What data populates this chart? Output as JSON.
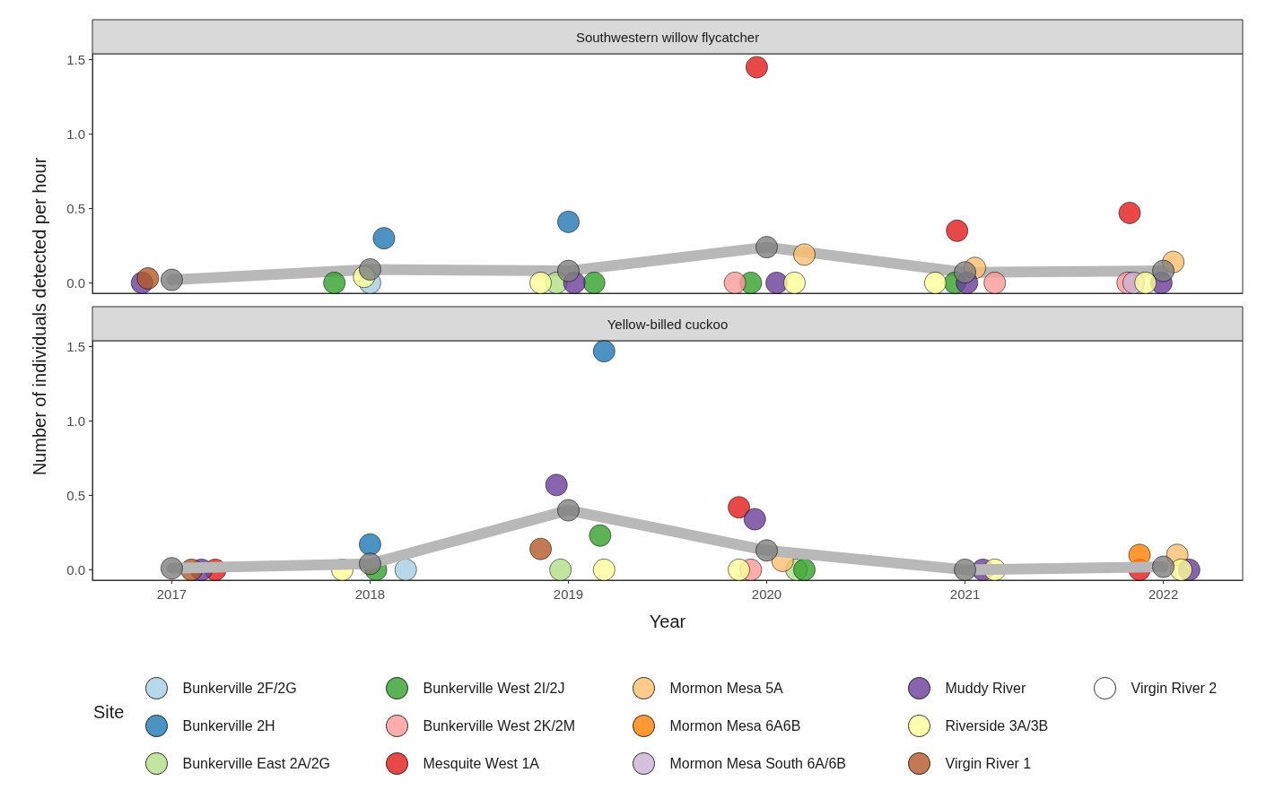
{
  "chart_data": [
    {
      "type": "scatter",
      "title": "Southwestern willow flycatcher",
      "ylabel": "Number of individuals detected per hour",
      "xlim": [
        2016.6,
        2022.4
      ],
      "xticks": [
        2017,
        2018,
        2019,
        2020,
        2021,
        2022
      ],
      "ylim": [
        -0.07,
        1.54
      ],
      "yticks": [
        {
          "value": 0,
          "label": "0.0"
        },
        {
          "value": 0.5,
          "label": "0.5"
        },
        {
          "value": 1,
          "label": "1.0"
        },
        {
          "value": 1.5,
          "label": "1.5"
        }
      ],
      "tick_labels": "y",
      "legend": false,
      "marker": "circle",
      "series": [
        {
          "color": "#a6cee3",
          "x": [
            2018.0
          ],
          "values": [
            0
          ]
        },
        {
          "color": "#1f78b4",
          "x": [
            2018.07,
            2019.0
          ],
          "values": [
            0.3,
            0.41
          ]
        },
        {
          "color": "#b2df8a",
          "x": [
            2018.94
          ],
          "values": [
            0
          ]
        },
        {
          "color": "#33a02c",
          "x": [
            2017.82,
            2019.13,
            2019.92,
            2020.95
          ],
          "values": [
            0,
            0,
            0,
            0
          ]
        },
        {
          "color": "#fb9a99",
          "x": [
            2019.84,
            2021.15,
            2021.82
          ],
          "values": [
            0,
            0,
            0
          ]
        },
        {
          "color": "#e31a1c",
          "x": [
            2019.95,
            2020.96,
            2021.83
          ],
          "values": [
            1.45,
            0.35,
            0.47
          ]
        },
        {
          "color": "#fdbf6f",
          "x": [
            2020.19,
            2021.05,
            2022.05
          ],
          "values": [
            0.19,
            0.1,
            0.14
          ]
        },
        {
          "color": "#cab2d6",
          "x": [
            2021.85
          ],
          "values": [
            0
          ]
        },
        {
          "color": "#6a3d9a",
          "x": [
            2016.85,
            2019.03,
            2020.05,
            2021.01,
            2021.99
          ],
          "values": [
            0,
            0,
            0,
            0,
            0
          ]
        },
        {
          "color": "#ffff99",
          "x": [
            2017.97,
            2018.86,
            2020.14,
            2020.85,
            2021.91
          ],
          "values": [
            0.04,
            0,
            0,
            0,
            0
          ]
        },
        {
          "color": "#b15928",
          "x": [
            2016.88
          ],
          "values": [
            0.03
          ]
        },
        {
          "type": "line",
          "color": "#b8b8b8",
          "marker": "none",
          "x": [
            2017,
            2018,
            2019,
            2020,
            2021,
            2022
          ],
          "values": [
            0.02,
            0.09,
            0.08,
            0.24,
            0.07,
            0.08
          ]
        },
        {
          "color": "#808080",
          "x": [
            2017,
            2018,
            2019,
            2020,
            2021,
            2022
          ],
          "values": [
            0.02,
            0.09,
            0.08,
            0.24,
            0.07,
            0.08
          ]
        }
      ]
    },
    {
      "type": "scatter",
      "title": "Yellow-billed cuckoo",
      "xlabel": "Year",
      "legend_title": "Site",
      "xlim": [
        2016.6,
        2022.4
      ],
      "xticks": [
        2017,
        2018,
        2019,
        2020,
        2021,
        2022
      ],
      "ylim": [
        -0.07,
        1.54
      ],
      "yticks": [
        {
          "value": 0,
          "label": "0.0"
        },
        {
          "value": 0.5,
          "label": "0.5"
        },
        {
          "value": 1,
          "label": "1.0"
        },
        {
          "value": 1.5,
          "label": "1.5"
        }
      ],
      "legend": "bottom",
      "marker": "circle",
      "series": [
        {
          "name": "Bunkerville 2F/2G",
          "color": "#a6cee3",
          "x": [
            2018.18
          ],
          "values": [
            0
          ]
        },
        {
          "name": "Bunkerville 2H",
          "color": "#1f78b4",
          "x": [
            2018.0,
            2019.18
          ],
          "values": [
            0.17,
            1.47
          ]
        },
        {
          "name": "Bunkerville East 2A/2G",
          "color": "#b2df8a",
          "x": [
            2018.96,
            2020.15
          ],
          "values": [
            0,
            0
          ]
        },
        {
          "name": "Bunkerville West 2I/2J",
          "color": "#33a02c",
          "x": [
            2018.03,
            2019.16,
            2020.19
          ],
          "values": [
            0,
            0.23,
            0
          ]
        },
        {
          "name": "Bunkerville West 2K/2M",
          "color": "#fb9a99",
          "x": [
            2019.92
          ],
          "values": [
            0
          ]
        },
        {
          "name": "Mesquite West 1A",
          "color": "#e31a1c",
          "x": [
            2017.22,
            2019.86,
            2021.88
          ],
          "values": [
            0,
            0.42,
            0
          ]
        },
        {
          "name": "Mormon Mesa 5A",
          "color": "#fdbf6f",
          "x": [
            2020.08,
            2022.07
          ],
          "values": [
            0.06,
            0.1
          ]
        },
        {
          "name": "Mormon Mesa 6A6B",
          "color": "#ff7f00",
          "x": [
            2021.88
          ],
          "values": [
            0.1
          ]
        },
        {
          "name": "Mormon Mesa South 6A/6B",
          "color": "#cab2d6"
        },
        {
          "name": "Muddy River",
          "color": "#6a3d9a",
          "x": [
            2017.15,
            2018.94,
            2019.94,
            2021.09,
            2022.13
          ],
          "values": [
            0,
            0.57,
            0.34,
            0,
            0
          ]
        },
        {
          "name": "Riverside 3A/3B",
          "color": "#ffff99",
          "x": [
            2017.86,
            2019.18,
            2019.86,
            2021.15,
            2022.09
          ],
          "values": [
            0,
            0,
            0,
            0,
            0
          ]
        },
        {
          "name": "Virgin River 1",
          "color": "#b15928",
          "x": [
            2017.1,
            2018.86
          ],
          "values": [
            0,
            0.14
          ]
        },
        {
          "name": "Virgin River 2",
          "color": "#ffffff"
        },
        {
          "type": "line",
          "color": "#b8b8b8",
          "marker": "none",
          "x": [
            2017,
            2018,
            2019,
            2020,
            2021,
            2022
          ],
          "values": [
            0.01,
            0.04,
            0.4,
            0.13,
            0,
            0.02
          ]
        },
        {
          "color": "#808080",
          "x": [
            2017,
            2018,
            2019,
            2020,
            2021,
            2022
          ],
          "values": [
            0.01,
            0.04,
            0.4,
            0.13,
            0,
            0.02
          ]
        }
      ]
    }
  ]
}
